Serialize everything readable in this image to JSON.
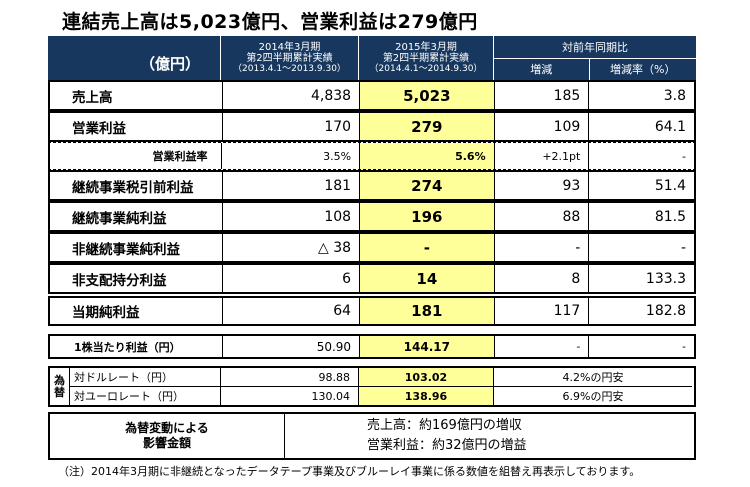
{
  "title": "連結売上高は5,023億円、営業利益は279億円",
  "header": {
    "unit": "（億円）",
    "prev": [
      "2014年3月期",
      "第2四半期累計実績",
      "（2013.4.1～2013.9.30）"
    ],
    "curr": [
      "2015年3月期",
      "第2四半期累計実績",
      "（2014.4.1～2014.9.30）"
    ],
    "yoy": "対前年同期比",
    "diff": "増減",
    "rate": "増減率（%）"
  },
  "rows": [
    {
      "label": "売上高",
      "prev": "4,838",
      "curr": "5,023",
      "diff": "185",
      "rate": "3.8"
    },
    {
      "label": "営業利益",
      "prev": "170",
      "curr": "279",
      "diff": "109",
      "rate": "64.1"
    },
    {
      "label": "営業利益率",
      "prev": "3.5%",
      "curr": "5.6%",
      "diff": "+2.1pt",
      "rate": "-"
    },
    {
      "label": "継続事業税引前利益",
      "prev": "181",
      "curr": "274",
      "diff": "93",
      "rate": "51.4"
    },
    {
      "label": "継続事業純利益",
      "prev": "108",
      "curr": "196",
      "diff": "88",
      "rate": "81.5"
    },
    {
      "label": "非継続事業純利益",
      "prev": "△ 38",
      "curr": "-",
      "diff": "-",
      "rate": "-"
    },
    {
      "label": "非支配持分利益",
      "prev": "6",
      "curr": "14",
      "diff": "8",
      "rate": "133.3"
    },
    {
      "label": "当期純利益",
      "prev": "64",
      "curr": "181",
      "diff": "117",
      "rate": "182.8"
    }
  ],
  "eps": {
    "label": "1株当たり利益（円）",
    "prev": "50.90",
    "curr": "144.17",
    "diff": "-",
    "rate": "-"
  },
  "fx": {
    "tag": [
      "為",
      "替"
    ],
    "usd": {
      "label": "対ドルレート（円）",
      "prev": "98.88",
      "curr": "103.02",
      "note": "4.2%の円安"
    },
    "eur": {
      "label": "対ユーロレート（円）",
      "prev": "130.04",
      "curr": "138.96",
      "note": "6.9%の円安"
    }
  },
  "impact": {
    "label": [
      "為替変動による",
      "影響金額"
    ],
    "sales": "売上高：約169億円の増収",
    "op": "営業利益：約32億円の増益"
  },
  "footnote": "（注）2014年3月期に非継続となったデータテープ事業及びブルーレイ事業に係る数値を組替え再表示しております。"
}
